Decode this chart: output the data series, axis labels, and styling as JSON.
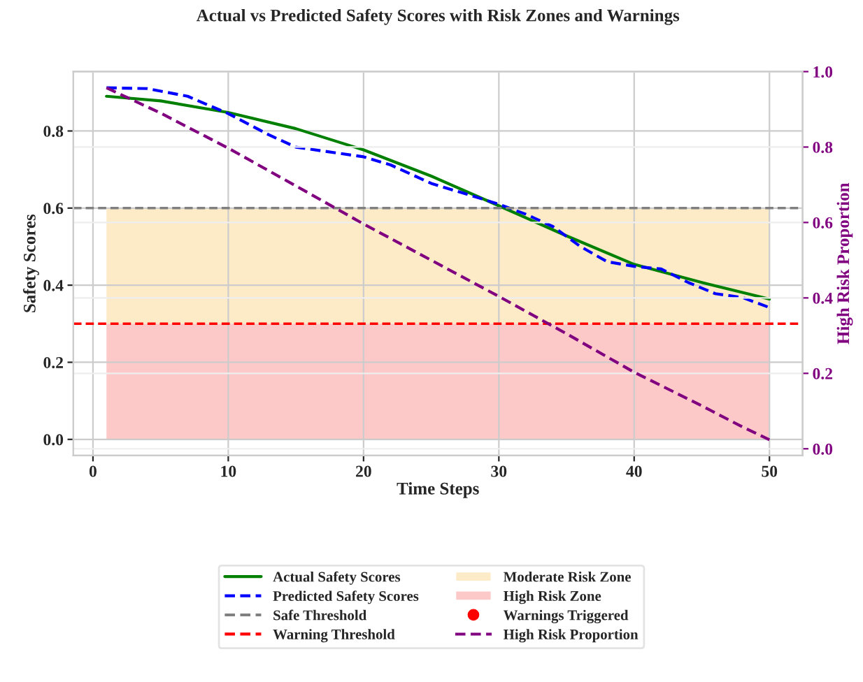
{
  "chart_data": {
    "type": "line",
    "title": "Actual vs Predicted Safety Scores with Risk Zones and Warnings",
    "xlabel": "Time Steps",
    "ylabel": "Safety Scores",
    "y2label": "High Risk Proportion",
    "xlim": [
      -1.45,
      52.45
    ],
    "xticks": [
      0,
      10,
      20,
      30,
      40,
      50
    ],
    "ylim": [
      -0.042,
      0.954
    ],
    "yticks": [
      {
        "value": 0,
        "label": "0.0"
      },
      0.2,
      0.4,
      0.6,
      0.8
    ],
    "y2lim": [
      -0.018,
      1.0
    ],
    "y2ticks": [
      {
        "value": 0,
        "label": "0.0"
      },
      0.2,
      0.4,
      0.6,
      0.8,
      {
        "value": 1,
        "label": "1.0"
      }
    ],
    "grid": true,
    "legend": "bottom",
    "series": [
      {
        "name": "Actual Safety Scores",
        "color": "#008000",
        "line_style": "solid",
        "x": [
          1,
          5,
          10,
          15,
          20,
          25,
          30,
          35,
          40,
          45,
          50
        ],
        "values": [
          0.89,
          0.878,
          0.848,
          0.806,
          0.751,
          0.683,
          0.606,
          0.528,
          0.454,
          0.407,
          0.364
        ]
      },
      {
        "name": "Predicted Safety Scores",
        "color": "#0000ff",
        "line_style": "dashed",
        "x": [
          1,
          4,
          7,
          10,
          13,
          15,
          17,
          20,
          22,
          25,
          28,
          30,
          32,
          34,
          36,
          38,
          40,
          42,
          44,
          46,
          48,
          50
        ],
        "values": [
          0.912,
          0.91,
          0.89,
          0.845,
          0.79,
          0.758,
          0.748,
          0.733,
          0.712,
          0.664,
          0.632,
          0.61,
          0.584,
          0.552,
          0.501,
          0.461,
          0.449,
          0.442,
          0.407,
          0.378,
          0.368,
          0.342
        ]
      },
      {
        "name": "Warnings Triggered",
        "type": "scatter",
        "marker": "circle",
        "color": "#ff0000"
      },
      {
        "name": "High Risk Proportion",
        "color": "#800080",
        "line_style": "dashed",
        "axis": "y2",
        "x": [
          1,
          5,
          10,
          15,
          20,
          25,
          30,
          35,
          40,
          45,
          48,
          50
        ],
        "values": [
          0.957,
          0.89,
          0.797,
          0.697,
          0.596,
          0.5,
          0.404,
          0.305,
          0.203,
          0.114,
          0.058,
          0.024
        ]
      }
    ],
    "ref_lines": [
      {
        "axis": "y",
        "value": 0.6,
        "label": "Safe Threshold",
        "color": "#808080",
        "line_style": "dashed"
      },
      {
        "axis": "y",
        "value": 0.3,
        "label": "Warning Threshold",
        "color": "#ff0000",
        "line_style": "dashed"
      }
    ],
    "bands": [
      {
        "axis": "y",
        "from": 0.3,
        "to": 0.6,
        "label": "Moderate Risk Zone",
        "color": "#fdebc8"
      },
      {
        "axis": "y",
        "from": 0,
        "to": 0.3,
        "label": "High Risk Zone",
        "color": "#fdc8c8"
      }
    ]
  }
}
